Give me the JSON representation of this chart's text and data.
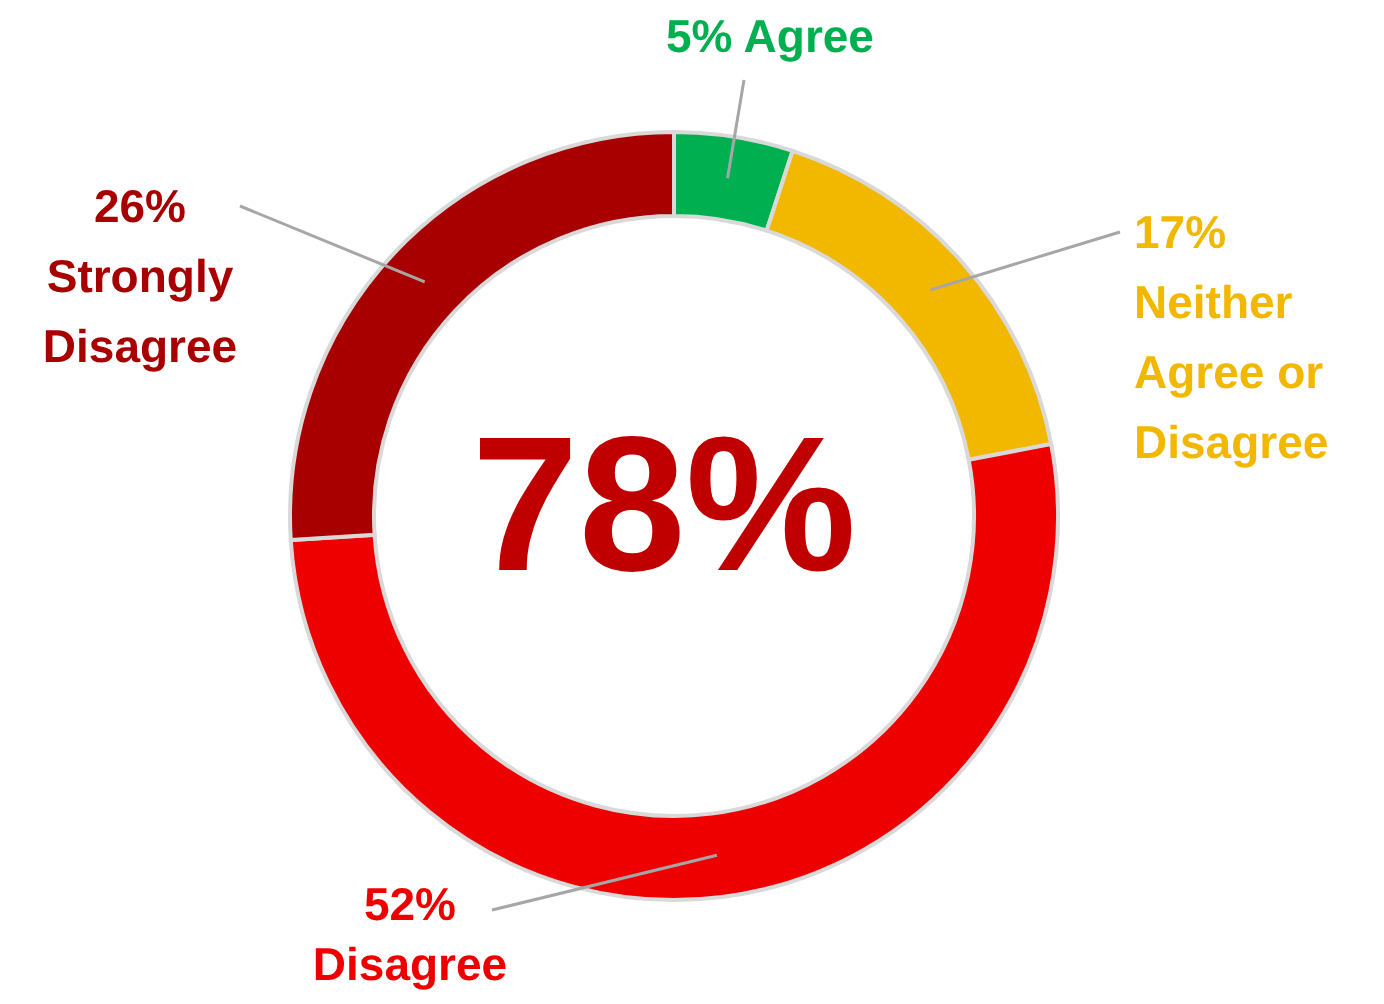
{
  "chart_data": {
    "type": "donut",
    "categories": [
      "Agree",
      "Neither Agree or Disagree",
      "Disagree",
      "Strongly Disagree"
    ],
    "values": [
      5,
      17,
      52,
      26
    ],
    "colors": [
      "#00b050",
      "#f2b800",
      "#ee0000",
      "#a80000"
    ],
    "value_labels": [
      "5%",
      "17%",
      "52%",
      "26%"
    ],
    "annotations": [
      "78%"
    ]
  }
}
